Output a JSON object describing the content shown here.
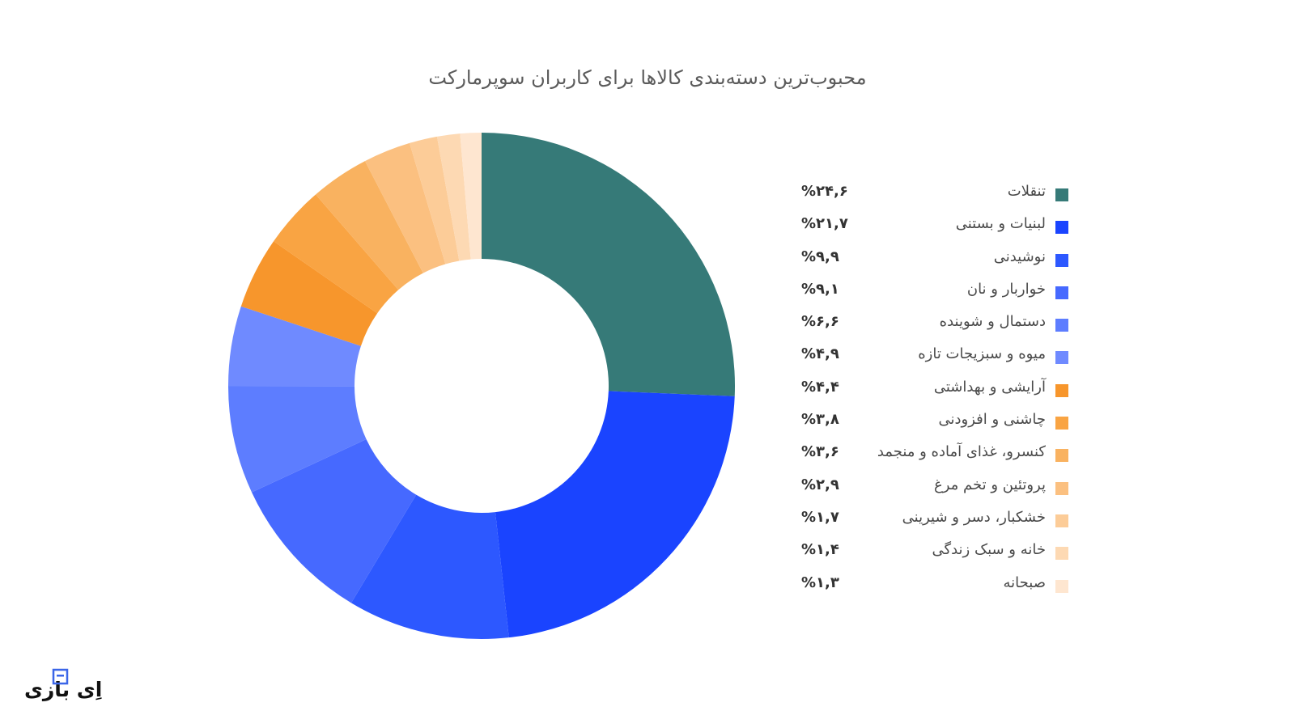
{
  "chart_data": {
    "type": "pie",
    "variant": "donut",
    "title": "محبوب‌ترین دسته‌بندی کالاها برای کاربران سوپرمارکت",
    "legend_position": "right",
    "slices": [
      {
        "label": "تنقلات",
        "value": 24.6,
        "value_label": "%۲۴,۶",
        "color": "#367a78"
      },
      {
        "label": "لبنیات و بستنی",
        "value": 21.7,
        "value_label": "%۲۱,۷",
        "color": "#1a44ff"
      },
      {
        "label": "نوشیدنی",
        "value": 9.9,
        "value_label": "%۹,۹",
        "color": "#2d58ff"
      },
      {
        "label": "خواربار و نان",
        "value": 9.1,
        "value_label": "%۹,۱",
        "color": "#4669ff"
      },
      {
        "label": "دستمال و شوینده",
        "value": 6.6,
        "value_label": "%۶,۶",
        "color": "#5d7dff"
      },
      {
        "label": "میوه و سبزیجات تازه",
        "value": 4.9,
        "value_label": "%۴,۹",
        "color": "#6f8aff"
      },
      {
        "label": "آرایشی و بهداشتی",
        "value": 4.4,
        "value_label": "%۴,۴",
        "color": "#f7962c"
      },
      {
        "label": "چاشنی و افزودنی",
        "value": 3.8,
        "value_label": "%۳,۸",
        "color": "#f9a443"
      },
      {
        "label": "کنسرو، غذای آماده و منجمد",
        "value": 3.6,
        "value_label": "%۳,۶",
        "color": "#f9b260"
      },
      {
        "label": "پروتئین و تخم مرغ",
        "value": 2.9,
        "value_label": "%۲,۹",
        "color": "#fbc080"
      },
      {
        "label": "خشکبار، دسر و شیرینی",
        "value": 1.7,
        "value_label": "%۱,۷",
        "color": "#fccc98"
      },
      {
        "label": "خانه و سبک زندگی",
        "value": 1.4,
        "value_label": "%۱,۴",
        "color": "#fdd9b3"
      },
      {
        "label": "صبحانه",
        "value": 1.3,
        "value_label": "%۱,۳",
        "color": "#fee6d0"
      }
    ]
  },
  "logo": {
    "text": "اِی بازی",
    "mark_color": "#3b66e8"
  }
}
